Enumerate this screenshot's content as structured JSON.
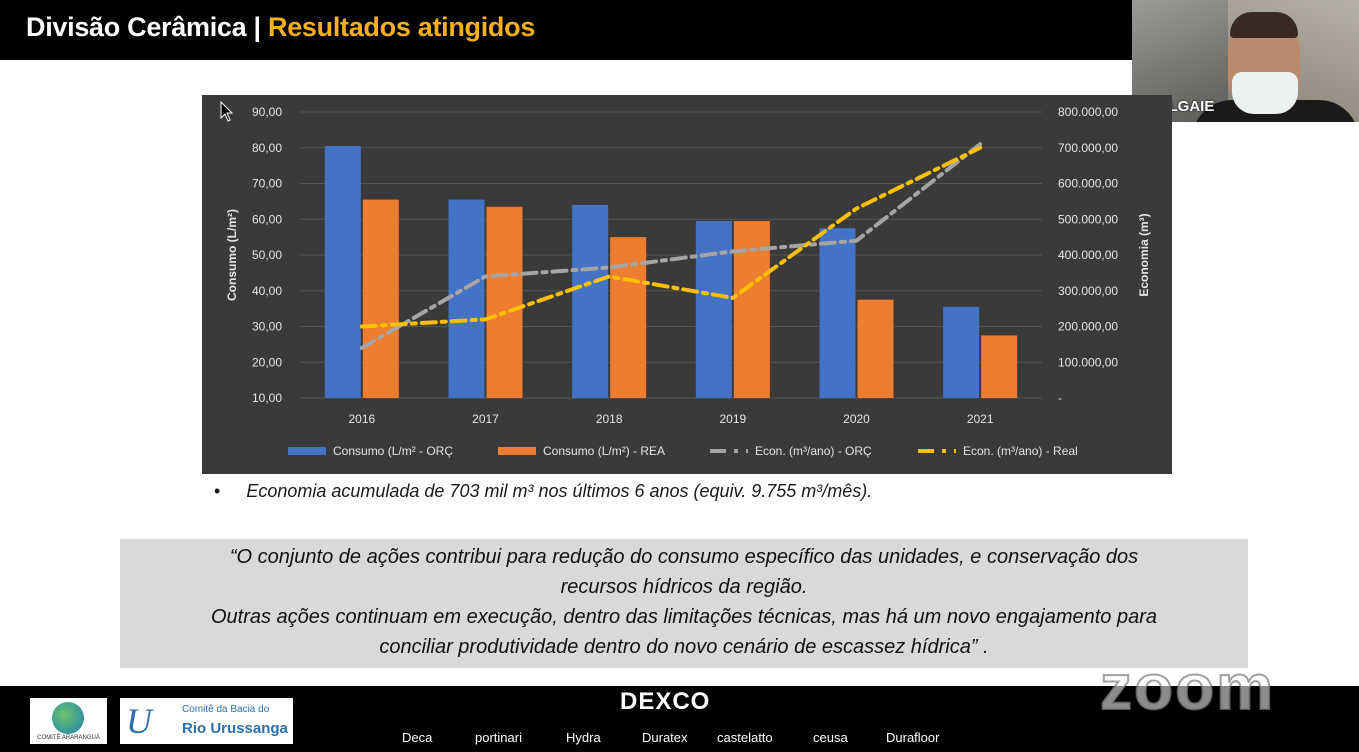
{
  "header": {
    "title_main": "Divisão Cerâmica",
    "title_sep": " | ",
    "title_highlight": "Resultados atingidos"
  },
  "webcam": {
    "participant_name": "MALLGAIE"
  },
  "chart_data": {
    "type": "bar",
    "categories": [
      "2016",
      "2017",
      "2018",
      "2019",
      "2020",
      "2021"
    ],
    "y_left_label": "Consumo (L/m²)",
    "y_right_label": "Economia (m³)",
    "y_left_ticks": [
      "90,00",
      "80,00",
      "70,00",
      "60,00",
      "50,00",
      "40,00",
      "30,00",
      "20,00",
      "10,00"
    ],
    "y_right_ticks": [
      "800.000,00",
      "700.000,00",
      "600.000,00",
      "500.000,00",
      "400.000,00",
      "300.000,00",
      "200.000,00",
      "100.000,00",
      "-"
    ],
    "ylim_left": [
      10,
      90
    ],
    "ylim_right": [
      0,
      800000
    ],
    "grid": true,
    "legend_position": "bottom",
    "series": [
      {
        "name": "Consumo (L/m² - ORÇ",
        "kind": "bar",
        "axis": "left",
        "color": "#4472c4",
        "values": [
          80.5,
          65.5,
          64.0,
          59.5,
          57.5,
          35.5
        ]
      },
      {
        "name": "Consumo (L/m²) - REA",
        "kind": "bar",
        "axis": "left",
        "color": "#ed7d31",
        "values": [
          65.5,
          63.5,
          55.0,
          59.5,
          37.5,
          27.5
        ]
      },
      {
        "name": "Econ. (m³/ano) - ORÇ",
        "kind": "line",
        "axis": "right",
        "color": "#a5a5a5",
        "style": "dash-dot",
        "values": [
          140000,
          340000,
          365000,
          410000,
          440000,
          710000
        ]
      },
      {
        "name": "Econ. (m³/ano) - Real",
        "kind": "line",
        "axis": "right",
        "color": "#ffc000",
        "style": "dash-dot",
        "values": [
          200000,
          220000,
          340000,
          280000,
          530000,
          700000
        ]
      }
    ]
  },
  "bullet": {
    "symbol": "•",
    "text": "Economia acumulada de 703 mil m³ nos últimos 6 anos (equiv. 9.755 m³/mês)."
  },
  "quote": {
    "line1": "“O conjunto de ações contribui para redução do consumo específico das unidades, e conservação dos",
    "line2": "recursos hídricos da região.",
    "line3": "Outras ações continuam em execução, dentro das limitações técnicas, mas há um novo engajamento para",
    "line4": "conciliar produtividade dentro do novo cenário de escassez hídrica” ."
  },
  "footer": {
    "logo1_text": "COMITÊ ARARANGUÁ",
    "logo2_line1": "Comitê da Bacia do",
    "logo2_line2": "Rio Urussanga",
    "brand_main": "DEXCO",
    "brands": [
      "Deca",
      "portinari",
      "Hydra",
      "Duratex",
      "castelatto",
      "ceusa",
      "Durafloor"
    ]
  },
  "watermark": "zoom",
  "colors": {
    "chart_background": "#3a3a3a",
    "header_background": "#000000",
    "title_highlight": "#f5b01b",
    "quote_background": "#d9d9d9"
  }
}
